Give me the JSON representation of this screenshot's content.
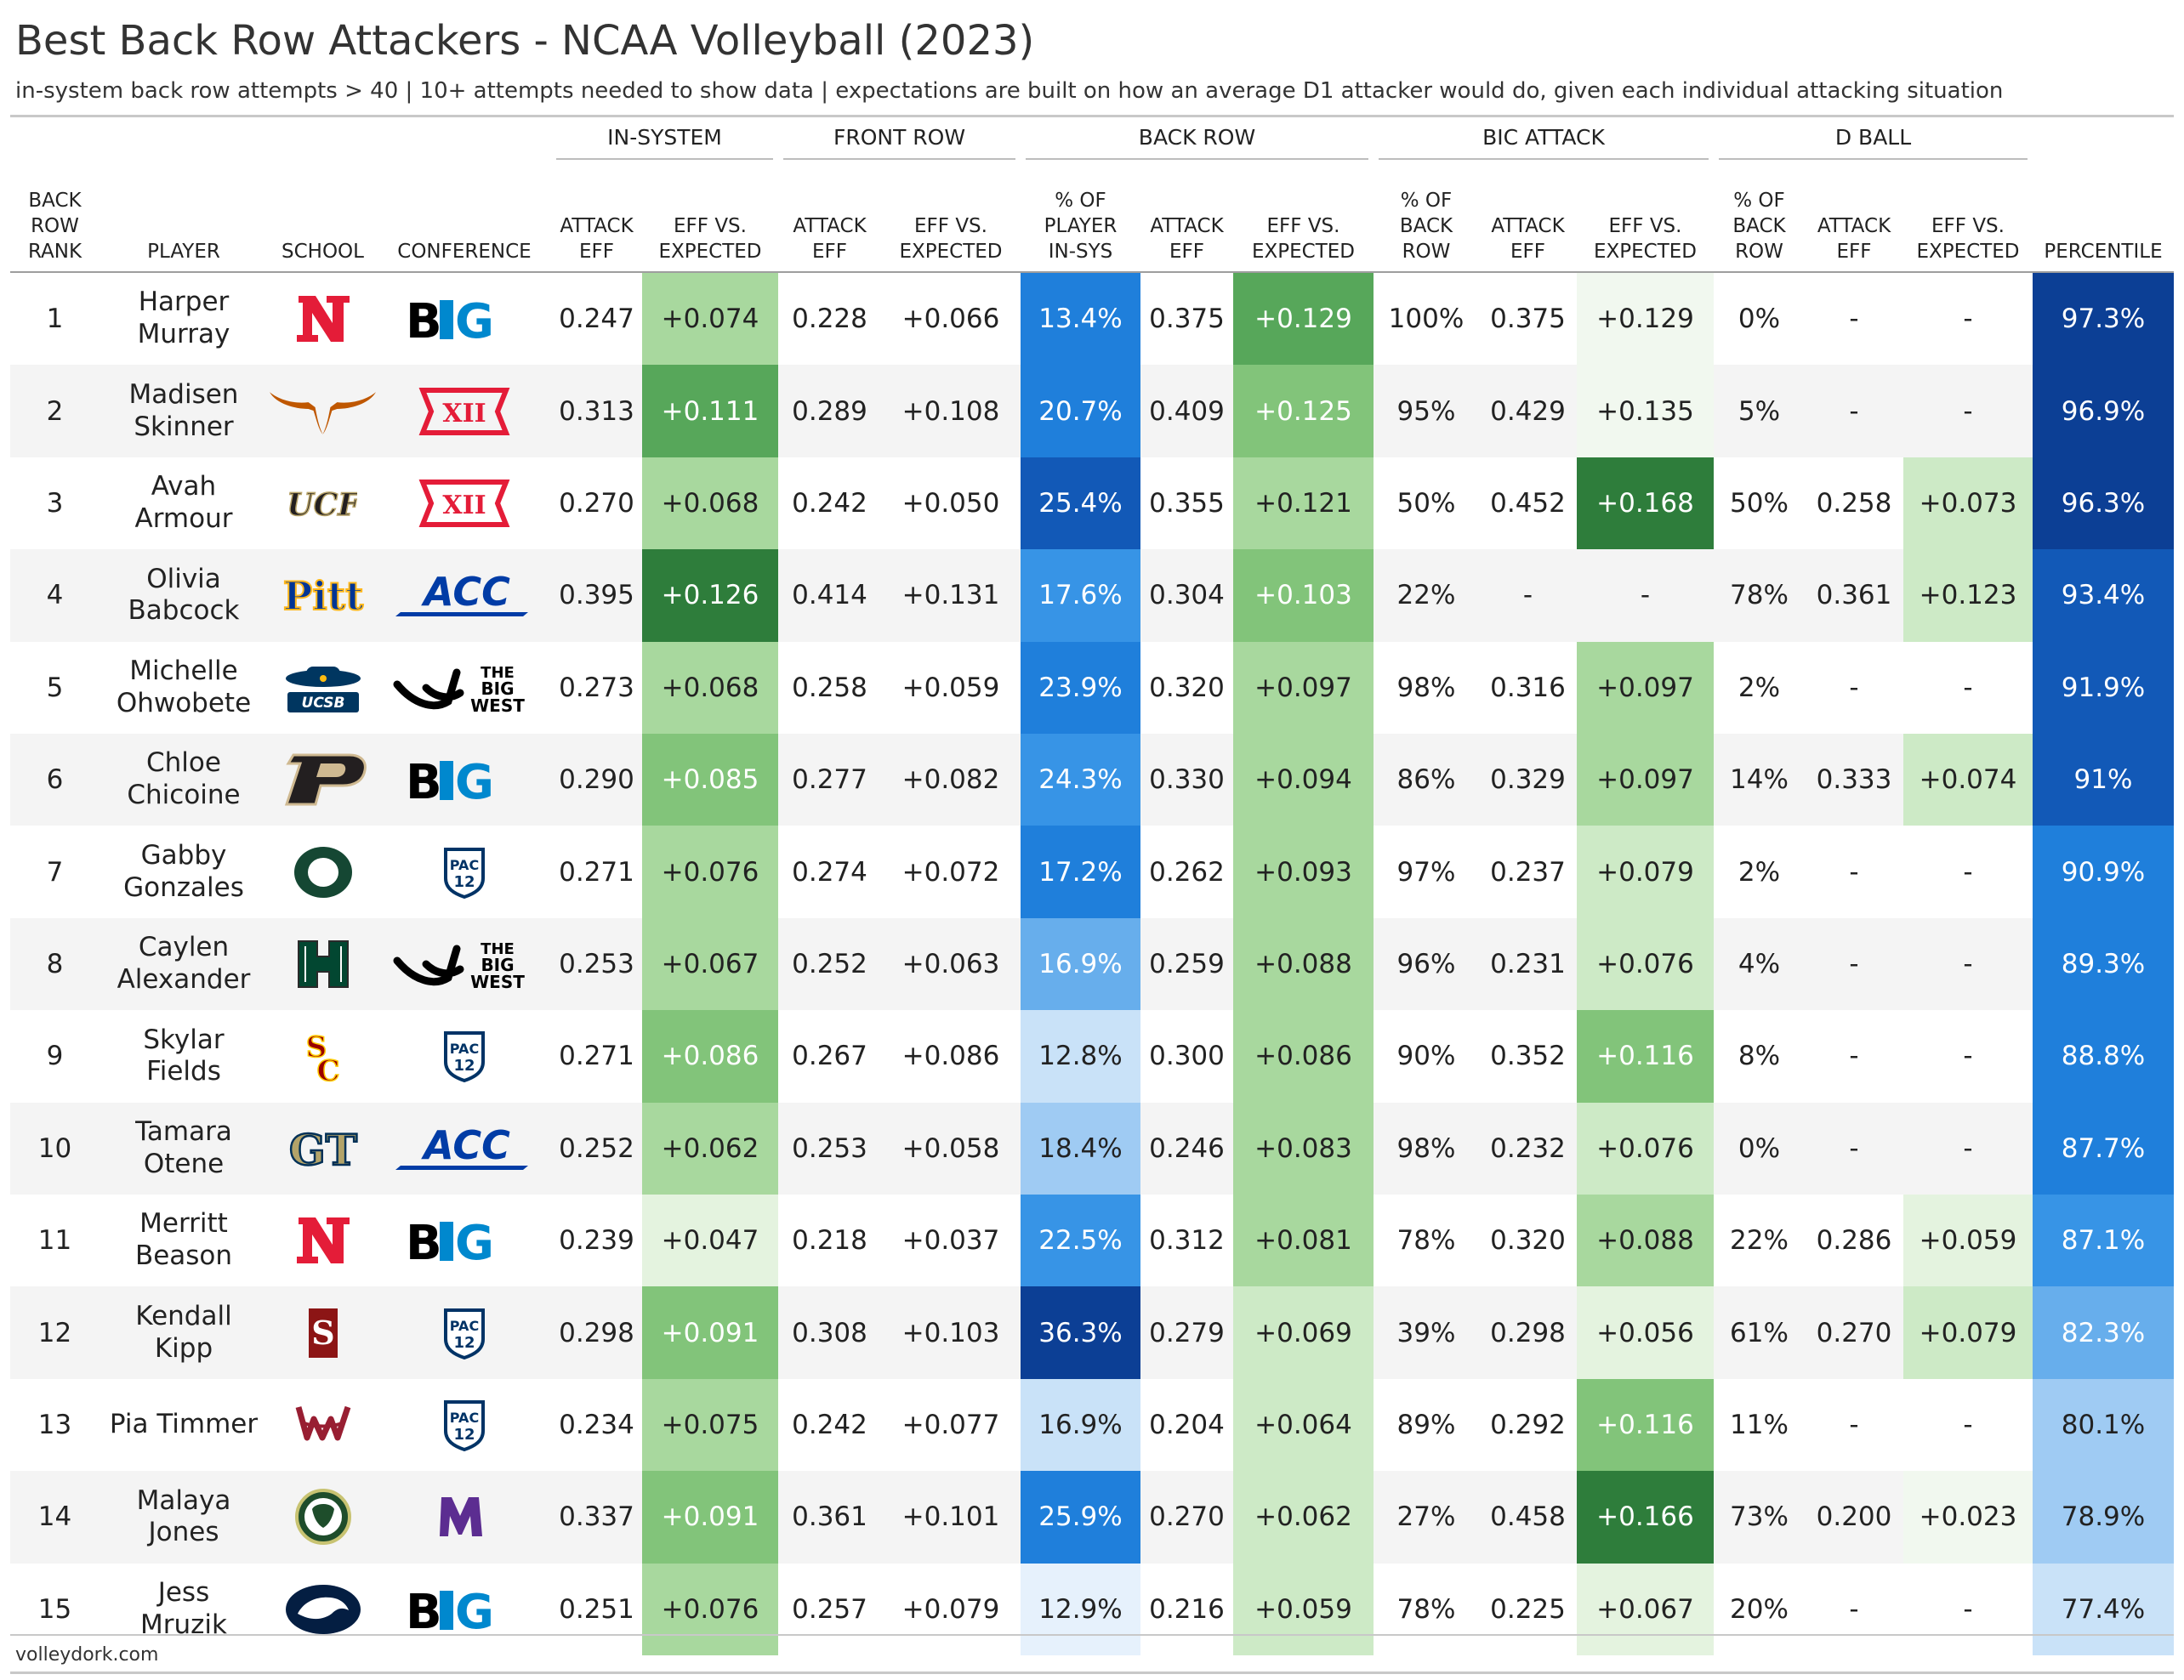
{
  "title": "Best Back Row Attackers - NCAA Volleyball (2023)",
  "subtitle": "in-system back row attempts > 40 | 10+ attempts needed to show data | expectations are built on how an average D1 attacker would do, given each individual attacking situation",
  "footer": "volleydork.com",
  "groups": [
    "IN-SYSTEM",
    "FRONT ROW",
    "BACK ROW",
    "BIC ATTACK",
    "D BALL"
  ],
  "columns": [
    "BACK\nROW\nRANK",
    "PLAYER",
    "SCHOOL",
    "CONFERENCE",
    "ATTACK\nEFF",
    "EFF VS.\nEXPECTED",
    "ATTACK\nEFF",
    "EFF VS.\nEXPECTED",
    "% OF\nPLAYER\nIN-SYS",
    "ATTACK\nEFF",
    "EFF VS.\nEXPECTED",
    "% OF\nBACK\nROW",
    "ATTACK\nEFF",
    "EFF VS.\nEXPECTED",
    "% OF\nBACK\nROW",
    "ATTACK\nEFF",
    "EFF VS.\nEXPECTED",
    "PERCENTILE"
  ],
  "colors": {
    "green_scale": [
      "#f1f8ef",
      "#e4f3df",
      "#cdeac6",
      "#a8d89e",
      "#82c47a",
      "#57a75a",
      "#2e7d3b"
    ],
    "blue_scale": [
      "#e6f1fc",
      "#c9e2f8",
      "#9fcbf3",
      "#67aeec",
      "#3794e6",
      "#1f7fdb",
      "#1259b7",
      "#0c3f95"
    ],
    "school": {
      "nebraska": "#e41c38",
      "texas": "#bf5700",
      "ucf": "#231f20",
      "pitt": "#003594",
      "ucsb": "#003660",
      "purdue": "#231f20",
      "oregon": "#154733",
      "hawaii": "#024731",
      "usc": "#990000",
      "stanford": "#8c1515",
      "georgia_tech": "#b3a369",
      "wsu": "#981e32",
      "csu": "#1e4d2b",
      "penn_state": "#041e42"
    },
    "conference": {
      "big_ten": "#000000",
      "big_ten_accent": "#0088ce",
      "big12": "#e41c38",
      "acc": "#013ca6",
      "big_west": "#000000",
      "pac12": "#003366",
      "mwc": "#5c2d91"
    }
  },
  "chart_data": {
    "type": "table",
    "rows": [
      {
        "rank": "1",
        "player": "Harper\nMurray",
        "school_icon": "nebraska-n-icon",
        "conference_icon": "big-ten-icon",
        "values": [
          "0.247",
          "+0.074",
          "0.228",
          "+0.066",
          "13.4%",
          "0.375",
          "+0.129",
          "100%",
          "0.375",
          "+0.129",
          "0%",
          "-",
          "-",
          "97.3%"
        ]
      },
      {
        "rank": "2",
        "player": "Madisen\nSkinner",
        "school_icon": "texas-longhorn-icon",
        "conference_icon": "big-12-icon",
        "values": [
          "0.313",
          "+0.111",
          "0.289",
          "+0.108",
          "20.7%",
          "0.409",
          "+0.125",
          "95%",
          "0.429",
          "+0.135",
          "5%",
          "-",
          "-",
          "96.9%"
        ]
      },
      {
        "rank": "3",
        "player": "Avah\nArmour",
        "school_icon": "ucf-icon",
        "conference_icon": "big-12-icon",
        "values": [
          "0.270",
          "+0.068",
          "0.242",
          "+0.050",
          "25.4%",
          "0.355",
          "+0.121",
          "50%",
          "0.452",
          "+0.168",
          "50%",
          "0.258",
          "+0.073",
          "96.3%"
        ]
      },
      {
        "rank": "4",
        "player": "Olivia\nBabcock",
        "school_icon": "pitt-icon",
        "conference_icon": "acc-icon",
        "values": [
          "0.395",
          "+0.126",
          "0.414",
          "+0.131",
          "17.6%",
          "0.304",
          "+0.103",
          "22%",
          "-",
          "-",
          "78%",
          "0.361",
          "+0.123",
          "93.4%"
        ]
      },
      {
        "rank": "5",
        "player": "Michelle\nOhwobete",
        "school_icon": "ucsb-icon",
        "conference_icon": "big-west-icon",
        "values": [
          "0.273",
          "+0.068",
          "0.258",
          "+0.059",
          "23.9%",
          "0.320",
          "+0.097",
          "98%",
          "0.316",
          "+0.097",
          "2%",
          "-",
          "-",
          "91.9%"
        ]
      },
      {
        "rank": "6",
        "player": "Chloe\nChicoine",
        "school_icon": "purdue-p-icon",
        "conference_icon": "big-ten-icon",
        "values": [
          "0.290",
          "+0.085",
          "0.277",
          "+0.082",
          "24.3%",
          "0.330",
          "+0.094",
          "86%",
          "0.329",
          "+0.097",
          "14%",
          "0.333",
          "+0.074",
          "91%"
        ]
      },
      {
        "rank": "7",
        "player": "Gabby\nGonzales",
        "school_icon": "oregon-o-icon",
        "conference_icon": "pac-12-icon",
        "values": [
          "0.271",
          "+0.076",
          "0.274",
          "+0.072",
          "17.2%",
          "0.262",
          "+0.093",
          "97%",
          "0.237",
          "+0.079",
          "2%",
          "-",
          "-",
          "90.9%"
        ]
      },
      {
        "rank": "8",
        "player": "Caylen\nAlexander",
        "school_icon": "hawaii-h-icon",
        "conference_icon": "big-west-icon",
        "values": [
          "0.253",
          "+0.067",
          "0.252",
          "+0.063",
          "16.9%",
          "0.259",
          "+0.088",
          "96%",
          "0.231",
          "+0.076",
          "4%",
          "-",
          "-",
          "89.3%"
        ]
      },
      {
        "rank": "9",
        "player": "Skylar\nFields",
        "school_icon": "usc-sc-icon",
        "conference_icon": "pac-12-icon",
        "values": [
          "0.271",
          "+0.086",
          "0.267",
          "+0.086",
          "12.8%",
          "0.300",
          "+0.086",
          "90%",
          "0.352",
          "+0.116",
          "8%",
          "-",
          "-",
          "88.8%"
        ]
      },
      {
        "rank": "10",
        "player": "Tamara\nOtene",
        "school_icon": "georgia-tech-icon",
        "conference_icon": "acc-icon",
        "values": [
          "0.252",
          "+0.062",
          "0.253",
          "+0.058",
          "18.4%",
          "0.246",
          "+0.083",
          "98%",
          "0.232",
          "+0.076",
          "0%",
          "-",
          "-",
          "87.7%"
        ]
      },
      {
        "rank": "11",
        "player": "Merritt\nBeason",
        "school_icon": "nebraska-n-icon",
        "conference_icon": "big-ten-icon",
        "values": [
          "0.239",
          "+0.047",
          "0.218",
          "+0.037",
          "22.5%",
          "0.312",
          "+0.081",
          "78%",
          "0.320",
          "+0.088",
          "22%",
          "0.286",
          "+0.059",
          "87.1%"
        ]
      },
      {
        "rank": "12",
        "player": "Kendall\nKipp",
        "school_icon": "stanford-s-icon",
        "conference_icon": "pac-12-icon",
        "values": [
          "0.298",
          "+0.091",
          "0.308",
          "+0.103",
          "36.3%",
          "0.279",
          "+0.069",
          "39%",
          "0.298",
          "+0.056",
          "61%",
          "0.270",
          "+0.079",
          "82.3%"
        ]
      },
      {
        "rank": "13",
        "player": "Pia Timmer",
        "school_icon": "washington-state-icon",
        "conference_icon": "pac-12-icon",
        "values": [
          "0.234",
          "+0.075",
          "0.242",
          "+0.077",
          "16.9%",
          "0.204",
          "+0.064",
          "89%",
          "0.292",
          "+0.116",
          "11%",
          "-",
          "-",
          "80.1%"
        ]
      },
      {
        "rank": "14",
        "player": "Malaya\nJones",
        "school_icon": "colorado-state-icon",
        "conference_icon": "mountain-west-icon",
        "values": [
          "0.337",
          "+0.091",
          "0.361",
          "+0.101",
          "25.9%",
          "0.270",
          "+0.062",
          "27%",
          "0.458",
          "+0.166",
          "73%",
          "0.200",
          "+0.023",
          "78.9%"
        ]
      },
      {
        "rank": "15",
        "player": "Jess\nMruzik",
        "school_icon": "penn-state-icon",
        "conference_icon": "big-ten-icon",
        "values": [
          "0.251",
          "+0.076",
          "0.257",
          "+0.079",
          "12.9%",
          "0.216",
          "+0.059",
          "78%",
          "0.225",
          "+0.067",
          "20%",
          "-",
          "-",
          "77.4%"
        ]
      }
    ],
    "shade_levels": [
      [
        3,
        5,
        0,
        5,
        0,
        3,
        6
      ],
      [
        5,
        5,
        2,
        4,
        0,
        3,
        6
      ],
      [
        3,
        6,
        4,
        3,
        6,
        2,
        6
      ],
      [
        6,
        4,
        1,
        4,
        -1,
        2,
        5
      ],
      [
        3,
        5,
        3,
        3,
        3,
        -1,
        4
      ],
      [
        4,
        4,
        3,
        3,
        3,
        2,
        4
      ],
      [
        3,
        5,
        1,
        3,
        2,
        -1,
        4
      ],
      [
        3,
        3,
        0,
        3,
        2,
        -1,
        4
      ],
      [
        4,
        1,
        0,
        3,
        4,
        -1,
        4
      ],
      [
        3,
        2,
        1,
        3,
        2,
        -1,
        3
      ],
      [
        1,
        4,
        1,
        3,
        3,
        1,
        3
      ],
      [
        4,
        7,
        2,
        2,
        1,
        2,
        2
      ],
      [
        3,
        1,
        1,
        2,
        4,
        -1,
        2
      ],
      [
        4,
        5,
        2,
        2,
        6,
        0,
        1
      ],
      [
        3,
        0,
        1,
        2,
        1,
        -1,
        1
      ]
    ]
  }
}
